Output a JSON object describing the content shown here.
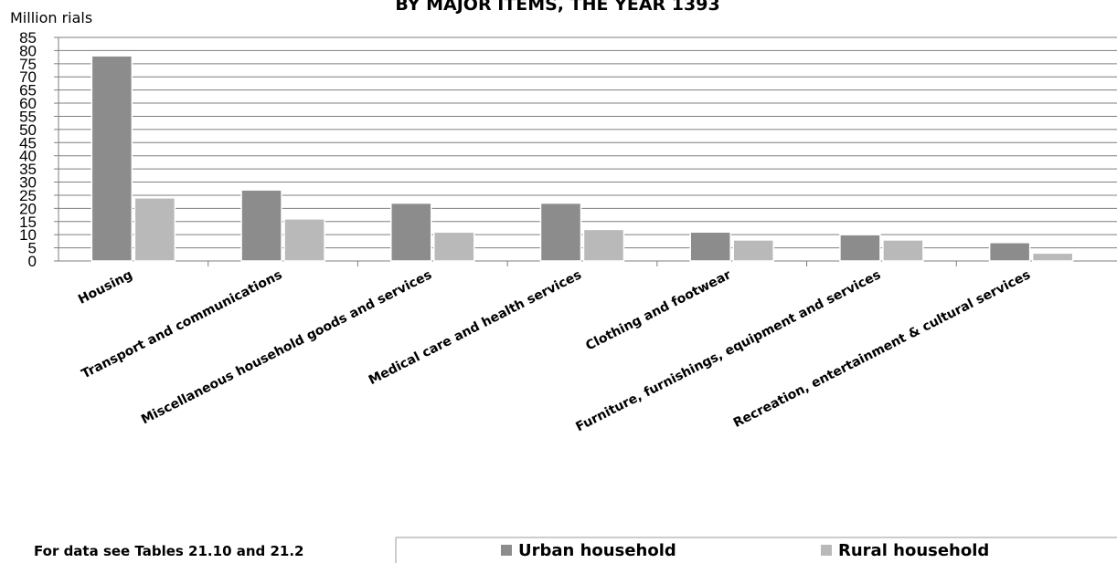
{
  "chart_data": {
    "type": "bar",
    "title": "BY MAJOR ITEMS, THE YEAR 1393",
    "ylabel": "Million rials",
    "ylim": [
      0,
      85
    ],
    "yticks": [
      0,
      5,
      10,
      15,
      20,
      25,
      30,
      35,
      40,
      45,
      50,
      55,
      60,
      65,
      70,
      75,
      80,
      85
    ],
    "grid": true,
    "categories": [
      "Housing",
      "Transport and communications",
      "Miscellaneous household goods and services",
      "Medical care and health services",
      "Clothing and footwear",
      "Furniture, furnishings, equipment and services",
      "Recreation, entertainment & cultural services"
    ],
    "series": [
      {
        "name": "Urban household",
        "color": "#8c8c8c",
        "values": [
          78,
          27,
          22,
          22,
          11,
          10,
          7
        ]
      },
      {
        "name": "Rural household",
        "color": "#b9b9b9",
        "values": [
          24,
          16,
          11,
          12,
          8,
          8,
          3
        ]
      }
    ],
    "legend_position": "bottom",
    "source_note": "For data see Tables 21.10 and 21.2"
  }
}
